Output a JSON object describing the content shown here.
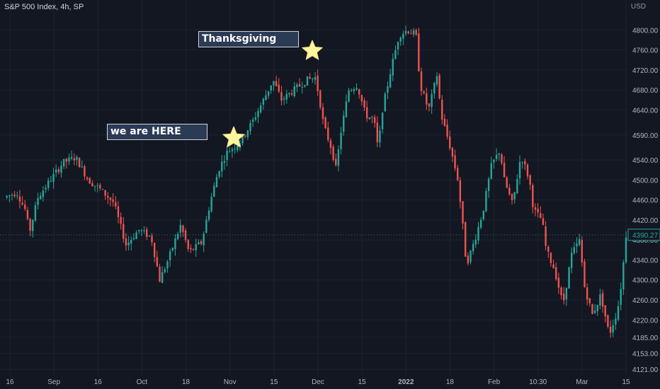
{
  "legend": "S&P 500 Index, 4h, SP",
  "currency": "USD",
  "colors": {
    "background": "#131722",
    "up": "#26a69a",
    "down": "#ef5350",
    "grid": "#1e222d",
    "axis_text": "#b2b5be",
    "star": "#fff59d",
    "price_badge": "#26a69a"
  },
  "annotations": [
    {
      "text": "Thanksgiving",
      "icon": "star-icon"
    },
    {
      "text": "we are HERE",
      "icon": "star-icon"
    }
  ],
  "chart_data": {
    "type": "candlestick",
    "title": "S&P 500 Index, 4h, SP",
    "ylim": [
      4110,
      4860
    ],
    "y_ticks": [
      "4121.00",
      "4153.00",
      "4185.00",
      "4220.00",
      "4260.00",
      "4300.00",
      "4340.00",
      "4380.00",
      "4420.00",
      "4460.00",
      "4500.00",
      "4540.00",
      "4590.00",
      "4640.00",
      "4680.00",
      "4720.00",
      "4760.00",
      "4800.00"
    ],
    "x_ticks": [
      "16",
      "Sep",
      "16",
      "Oct",
      "18",
      "Nov",
      "15",
      "Dec",
      "15",
      "2022",
      "18",
      "Feb",
      "10:30",
      "Mar",
      "15"
    ],
    "last_price": "4390.27",
    "close_path": [
      {
        "t": 0,
        "v": 4465
      },
      {
        "t": 3,
        "v": 4475
      },
      {
        "t": 5,
        "v": 4440
      },
      {
        "t": 6,
        "v": 4395
      },
      {
        "t": 8,
        "v": 4465
      },
      {
        "t": 11,
        "v": 4500
      },
      {
        "t": 14,
        "v": 4535
      },
      {
        "t": 17,
        "v": 4545
      },
      {
        "t": 20,
        "v": 4500
      },
      {
        "t": 23,
        "v": 4480
      },
      {
        "t": 26,
        "v": 4455
      },
      {
        "t": 29,
        "v": 4370
      },
      {
        "t": 32,
        "v": 4400
      },
      {
        "t": 35,
        "v": 4385
      },
      {
        "t": 37,
        "v": 4300
      },
      {
        "t": 39,
        "v": 4340
      },
      {
        "t": 42,
        "v": 4410
      },
      {
        "t": 44,
        "v": 4355
      },
      {
        "t": 47,
        "v": 4375
      },
      {
        "t": 49,
        "v": 4455
      },
      {
        "t": 51,
        "v": 4520
      },
      {
        "t": 53,
        "v": 4555
      },
      {
        "t": 56,
        "v": 4575
      },
      {
        "t": 59,
        "v": 4615
      },
      {
        "t": 62,
        "v": 4665
      },
      {
        "t": 64,
        "v": 4700
      },
      {
        "t": 66,
        "v": 4660
      },
      {
        "t": 69,
        "v": 4680
      },
      {
        "t": 72,
        "v": 4700
      },
      {
        "t": 74,
        "v": 4705
      },
      {
        "t": 75,
        "v": 4665
      },
      {
        "t": 76,
        "v": 4610
      },
      {
        "t": 78,
        "v": 4560
      },
      {
        "t": 79,
        "v": 4520
      },
      {
        "t": 80,
        "v": 4590
      },
      {
        "t": 82,
        "v": 4680
      },
      {
        "t": 84,
        "v": 4690
      },
      {
        "t": 86,
        "v": 4630
      },
      {
        "t": 88,
        "v": 4620
      },
      {
        "t": 89,
        "v": 4560
      },
      {
        "t": 90,
        "v": 4640
      },
      {
        "t": 92,
        "v": 4720
      },
      {
        "t": 94,
        "v": 4790
      },
      {
        "t": 96,
        "v": 4800
      },
      {
        "t": 98,
        "v": 4790
      },
      {
        "t": 99,
        "v": 4690
      },
      {
        "t": 101,
        "v": 4640
      },
      {
        "t": 103,
        "v": 4710
      },
      {
        "t": 104,
        "v": 4630
      },
      {
        "t": 106,
        "v": 4570
      },
      {
        "t": 108,
        "v": 4500
      },
      {
        "t": 109,
        "v": 4420
      },
      {
        "t": 110,
        "v": 4330
      },
      {
        "t": 112,
        "v": 4380
      },
      {
        "t": 114,
        "v": 4440
      },
      {
        "t": 116,
        "v": 4530
      },
      {
        "t": 118,
        "v": 4560
      },
      {
        "t": 119,
        "v": 4500
      },
      {
        "t": 121,
        "v": 4450
      },
      {
        "t": 123,
        "v": 4550
      },
      {
        "t": 125,
        "v": 4500
      },
      {
        "t": 126,
        "v": 4440
      },
      {
        "t": 128,
        "v": 4420
      },
      {
        "t": 129,
        "v": 4360
      },
      {
        "t": 131,
        "v": 4320
      },
      {
        "t": 133,
        "v": 4250
      },
      {
        "t": 135,
        "v": 4350
      },
      {
        "t": 137,
        "v": 4380
      },
      {
        "t": 138,
        "v": 4290
      },
      {
        "t": 140,
        "v": 4230
      },
      {
        "t": 142,
        "v": 4270
      },
      {
        "t": 144,
        "v": 4190
      },
      {
        "t": 146,
        "v": 4240
      },
      {
        "t": 147,
        "v": 4300
      },
      {
        "t": 148,
        "v": 4390
      }
    ]
  }
}
